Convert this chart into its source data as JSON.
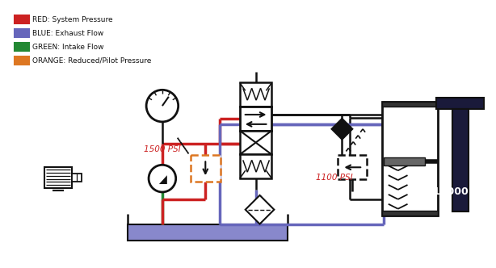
{
  "legend": [
    {
      "label": "RED: System Pressure",
      "color": "#cc2222"
    },
    {
      "label": "BLUE: Exhaust Flow",
      "color": "#6666bb"
    },
    {
      "label": "GREEN: Intake Flow",
      "color": "#228833"
    },
    {
      "label": "ORANGE: Reduced/Pilot Pressure",
      "color": "#dd7722"
    }
  ],
  "bg_color": "#ffffff",
  "psi_1500": "1500 PSI",
  "psi_1100": "1100 PSI",
  "lbs_10000": "10000 lbs",
  "colors": {
    "red": "#cc2222",
    "blue": "#6666bb",
    "green": "#228833",
    "orange": "#dd7722",
    "black": "#111111",
    "dark": "#222244",
    "tank": "#8888cc"
  },
  "lw_pipe": 2.5,
  "lw_thin": 1.3,
  "lw_thick": 3.0
}
